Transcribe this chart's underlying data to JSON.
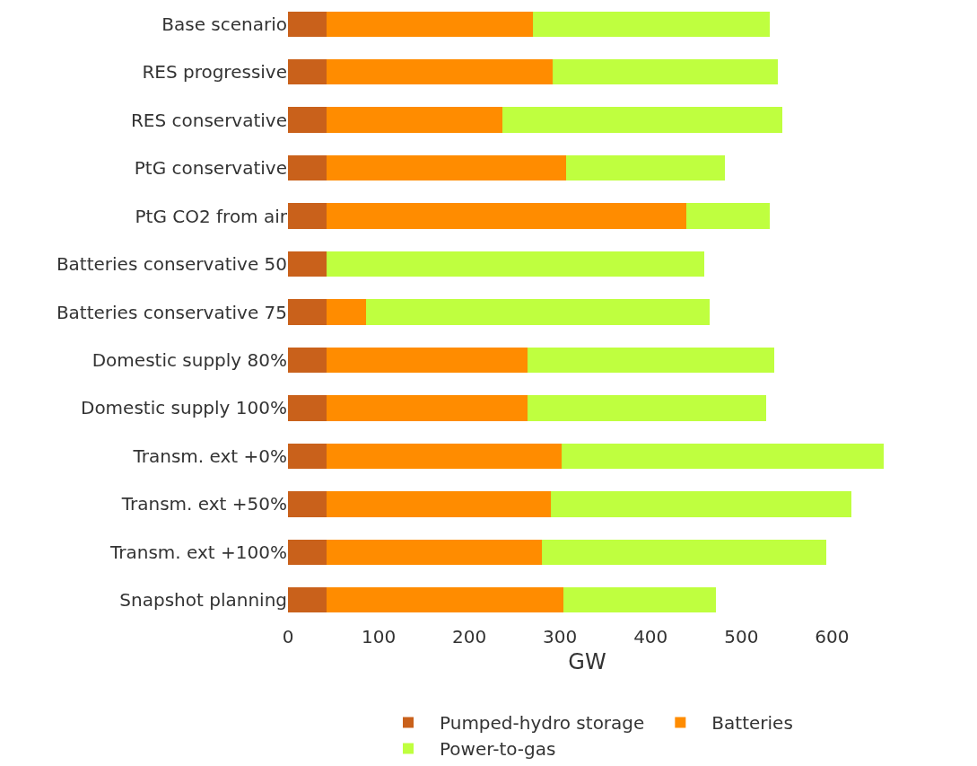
{
  "chart_data": {
    "type": "bar",
    "orientation": "horizontal",
    "stacked": true,
    "xlabel": "GW",
    "categories": [
      "Base scenario",
      "RES progressive",
      "RES conservative",
      "PtG conservative",
      "PtG CO2 from air",
      "Batteries conservative 50",
      "Batteries conservative 75",
      "Domestic supply 80%",
      "Domestic supply 100%",
      "Transm. ext +0%",
      "Transm. ext +50%",
      "Transm. ext +100%",
      "Snapshot planning"
    ],
    "series": [
      {
        "name": "Pumped-hydro storage",
        "color": "#c9611b",
        "values": [
          43,
          43,
          43,
          43,
          43,
          43,
          43,
          43,
          43,
          43,
          43,
          43,
          43
        ]
      },
      {
        "name": "Batteries",
        "color": "#ff8c00",
        "values": [
          227,
          249,
          193,
          264,
          396,
          0,
          43,
          221,
          221,
          259,
          247,
          237,
          261
        ]
      },
      {
        "name": "Power-to-gas",
        "color": "#bfff3f",
        "values": [
          261,
          248,
          309,
          175,
          92,
          416,
          379,
          272,
          263,
          355,
          331,
          314,
          168
        ]
      }
    ],
    "xlim": [
      0,
      660
    ],
    "xticks": [
      0,
      100,
      200,
      300,
      400,
      500,
      600
    ],
    "grid": false,
    "legend": "bottom"
  }
}
